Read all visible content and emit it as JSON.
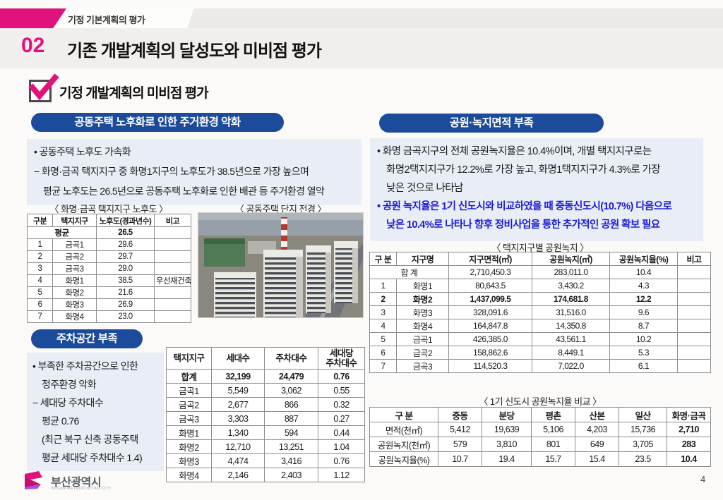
{
  "header": {
    "eyebrow": "기정 기본계획의 평가",
    "section_no": "02",
    "title": "기존 개발계획의 달성도와 미비점 평가",
    "subtitle": "기정 개발계획의 미비점 평가"
  },
  "colors": {
    "accent_pink": "#e2127d",
    "header_blue": "#1c4b9b",
    "panel_blue": "#e9eef6",
    "note_blue": "#1b1bd6"
  },
  "sections": {
    "aging": {
      "title": "공동주택 노후화로 인한 주거환경 악화",
      "lines": [
        "• 공동주택 노후도 가속화",
        "− 화명·금곡 택지지구 중 화명1지구의 노후도가 38.5년으로 가장 높으며",
        "평균 노후도는 26.5년으로 공동주택 노후화로 인한 배관 등 주거환경 열악"
      ],
      "table_caption": "〈 화명·금곡 택지지구 노후도 〉",
      "photo_caption": "〈 공동주택 단지 전경 〉",
      "table": {
        "headers": [
          "구분",
          "택지지구",
          "노후도(경과년수)",
          "비고"
        ],
        "rows": [
          [
            {
              "t": "평균",
              "cs": 2,
              "b": 1
            },
            {
              "t": "26.5",
              "b": 1
            },
            ""
          ],
          [
            "1",
            "금곡1",
            "29.6",
            ""
          ],
          [
            "2",
            "금곡2",
            "29.7",
            ""
          ],
          [
            "3",
            "금곡3",
            "29.0",
            ""
          ],
          [
            "4",
            "화명1",
            "38.5",
            "우선재건축"
          ],
          [
            "5",
            "화명2",
            "21.6",
            ""
          ],
          [
            "6",
            "화명3",
            "26.9",
            ""
          ],
          [
            "7",
            "화명4",
            "23.0",
            ""
          ]
        ]
      }
    },
    "parking": {
      "title": "주차공간 부족",
      "lines": [
        "• 부족한 주차공간으로 인한",
        "정주환경 악화",
        "− 세대당 주차대수",
        "평균 0.76",
        "(최근 북구 신축 공동주택",
        "평균 세대당 주차대수 1.4)"
      ],
      "table": {
        "headers": [
          "택지지구",
          "세대수",
          "주차대수",
          "세대당\n주차대수"
        ],
        "rows": [
          [
            {
              "t": "합계",
              "b": 1
            },
            {
              "t": "32,199",
              "b": 1
            },
            {
              "t": "24,479",
              "b": 1
            },
            {
              "t": "0.76",
              "b": 1
            }
          ],
          [
            "금곡1",
            "5,549",
            "3,062",
            "0.55"
          ],
          [
            "금곡2",
            "2,677",
            "866",
            "0.32"
          ],
          [
            "금곡3",
            "3,303",
            "887",
            "0.27"
          ],
          [
            "화명1",
            "1,340",
            "594",
            "0.44"
          ],
          [
            "화명2",
            "12,710",
            "13,251",
            "1.04"
          ],
          [
            "화명3",
            "4,474",
            "3,416",
            "0.76"
          ],
          [
            "화명4",
            "2,146",
            "2,403",
            "1.12"
          ]
        ]
      }
    },
    "park": {
      "title": "공원·녹지면적 부족",
      "lines": [
        "• 화명 금곡지구의 전체 공원녹지율은 10.4%이며, 개별 택지지구로는",
        "화명2택지지구가 12.2%로 가장 높고, 화명1택지지구가 4.3%로 가장",
        "낮은 것으로 나타남"
      ],
      "note_lines": [
        "• 공원 녹지율은 1기 신도시와 비교하였을 때 중동신도시(10.7%) 다음으로",
        "낮은 10.4%로 나타나 향후 정비사업을 통한 추가적인 공원 확보 필요"
      ],
      "table1_caption": "〈 택지지구별 공원녹지 〉",
      "table1": {
        "headers": [
          "구 분",
          "지구명",
          "지구면적(㎡)",
          "공원녹지(㎡)",
          "공원녹지율(%)",
          "비고"
        ],
        "rows": [
          [
            {
              "t": "합 계",
              "cs": 2
            },
            "2,710,450.3",
            "283,011.0",
            "10.4",
            ""
          ],
          [
            "1",
            "화명1",
            "80,643.5",
            "3,430.2",
            "4.3",
            ""
          ],
          [
            {
              "t": "2",
              "b": 1
            },
            {
              "t": "화명2",
              "b": 1
            },
            {
              "t": "1,437,099.5",
              "b": 1
            },
            {
              "t": "174,681.8",
              "b": 1
            },
            {
              "t": "12.2",
              "b": 1
            },
            ""
          ],
          [
            "3",
            "화명3",
            "328,091.6",
            "31,516.0",
            "9.6",
            ""
          ],
          [
            "4",
            "화명4",
            "164,847.8",
            "14,350.8",
            "8.7",
            ""
          ],
          [
            "5",
            "금곡1",
            "426,385.0",
            "43,561.1",
            "10.2",
            ""
          ],
          [
            "6",
            "금곡2",
            "158,862.6",
            "8,449.1",
            "5.3",
            ""
          ],
          [
            "7",
            "금곡3",
            "114,520.3",
            "7,022.0",
            "6.1",
            ""
          ]
        ]
      },
      "table2_caption": "〈 1기 신도시 공원녹지율 비교 〉",
      "table2": {
        "headers": [
          "구 분",
          "중동",
          "분당",
          "평촌",
          "산본",
          "일산",
          "화명·금곡"
        ],
        "rows": [
          [
            "면적(천㎡)",
            "5,412",
            "19,639",
            "5,106",
            "4,203",
            "15,736",
            {
              "t": "2,710",
              "b": 1
            }
          ],
          [
            "공원녹지(천㎡)",
            "579",
            "3,810",
            "801",
            "649",
            "3,705",
            {
              "t": "283",
              "b": 1
            }
          ],
          [
            "공원녹지율(%)",
            "10.7",
            "19.4",
            "15.7",
            "15.4",
            "23.5",
            {
              "t": "10.4",
              "b": 1
            }
          ]
        ]
      }
    }
  },
  "footer": {
    "logo_text": "부산광역시",
    "logo_sub": "BUSAN METROPOLITAN CITY",
    "page_number": "4"
  }
}
